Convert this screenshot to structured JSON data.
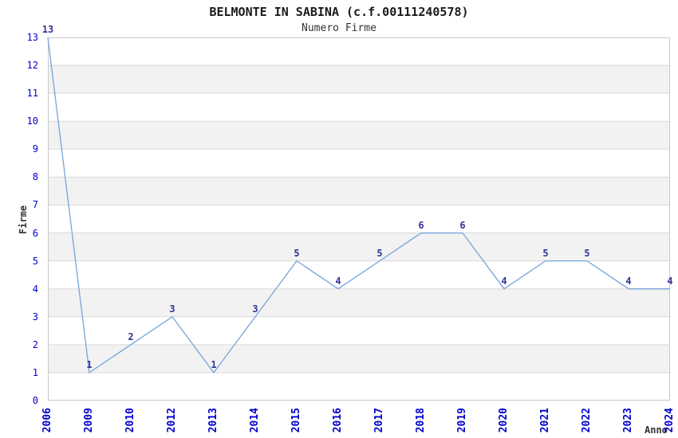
{
  "chart_data": {
    "type": "line",
    "title": "BELMONTE IN SABINA (c.f.00111240578)",
    "subtitle": "Numero Firme",
    "xlabel": "Anno",
    "ylabel": "Firme",
    "categories": [
      "2006",
      "2009",
      "2010",
      "2012",
      "2013",
      "2014",
      "2015",
      "2016",
      "2017",
      "2018",
      "2019",
      "2020",
      "2021",
      "2022",
      "2023",
      "2024"
    ],
    "values": [
      13,
      1,
      2,
      3,
      1,
      3,
      5,
      4,
      5,
      6,
      6,
      4,
      5,
      5,
      4,
      4
    ],
    "yticks": [
      0,
      1,
      2,
      3,
      4,
      5,
      6,
      7,
      8,
      9,
      10,
      11,
      12,
      13
    ],
    "ylim": [
      0,
      13
    ],
    "grid": "horizontal-bands",
    "legend_position": "none",
    "data_labels_shown": true,
    "colors": {
      "line": "#74a4dc",
      "tick_label": "#0000cc",
      "data_label": "#333399",
      "band_gray": "#f2f2f2",
      "band_white": "#ffffff",
      "gridline": "#d9d9d9",
      "plot_border": "#c9c9c9",
      "title_text": "#1a1a1a",
      "axis_label_text": "#333333"
    }
  }
}
